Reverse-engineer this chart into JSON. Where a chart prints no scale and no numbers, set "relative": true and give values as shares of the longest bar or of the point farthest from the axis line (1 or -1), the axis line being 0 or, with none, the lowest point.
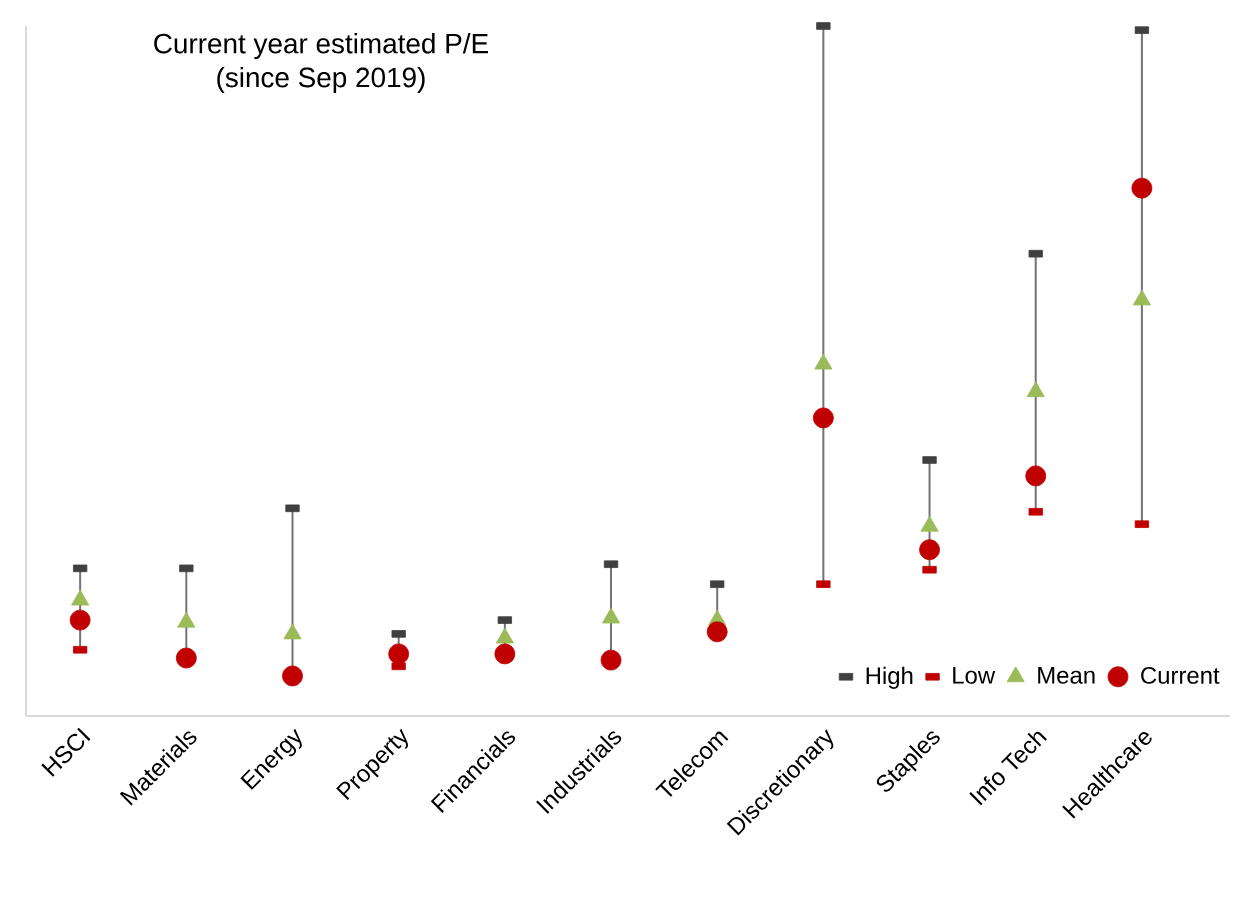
{
  "chart_data": {
    "type": "scatter",
    "title": "Current year estimated P/E",
    "subtitle": "(since Sep 2019)",
    "relative": true,
    "legend": "bottom right",
    "categories": [
      "HSCI",
      "Materials",
      "Energy",
      "Property",
      "Financials",
      "Industrials",
      "Telecom",
      "Discretionary",
      "Staples",
      "Info Tech",
      "Healthcare"
    ],
    "series": [
      {
        "name": "High",
        "color": "#404040",
        "marker": "square",
        "values": [
          0.214,
          0.214,
          0.301,
          0.119,
          0.139,
          0.22,
          0.191,
          1,
          0.371,
          0.67,
          0.994
        ]
      },
      {
        "name": "Low",
        "color": "#c00000",
        "marker": "square",
        "values": [
          0.096,
          null,
          null,
          0.072,
          null,
          null,
          null,
          0.191,
          0.212,
          0.296,
          0.278
        ]
      },
      {
        "name": "Mean",
        "color": "#9bbb59",
        "marker": "triangle",
        "values": [
          0.168,
          0.136,
          0.119,
          null,
          0.113,
          0.142,
          0.139,
          0.51,
          0.275,
          0.47,
          0.603
        ]
      },
      {
        "name": "Current",
        "color": "#c00000",
        "marker": "circle",
        "values": [
          0.139,
          0.084,
          0.058,
          0.09,
          0.09,
          0.081,
          0.122,
          0.432,
          0.241,
          0.348,
          0.765
        ]
      }
    ]
  }
}
